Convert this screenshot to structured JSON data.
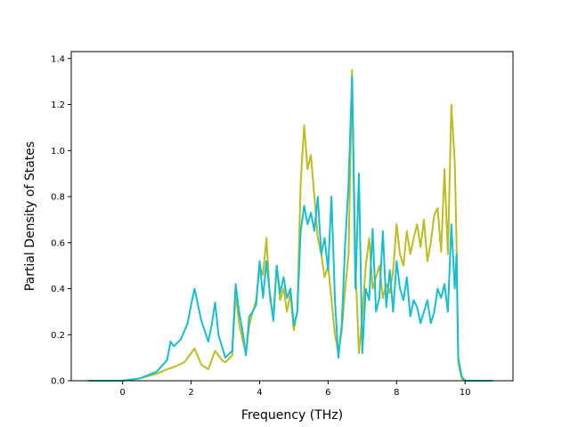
{
  "chart_data": {
    "type": "line",
    "title": "",
    "xlabel": "Frequency (THz)",
    "ylabel": "Partial Density of States",
    "xlim": [
      -1.5,
      11.4
    ],
    "ylim": [
      0,
      1.43
    ],
    "xticks": [
      "0",
      "2",
      "4",
      "6",
      "8",
      "10"
    ],
    "yticks": [
      "0.0",
      "0.2",
      "0.4",
      "0.6",
      "0.8",
      "1.0",
      "1.2",
      "1.4"
    ],
    "grid": false,
    "legend": "none",
    "colors": {
      "series_a": "#bcbd22",
      "series_b": "#17becf",
      "series_c": "#e377c2",
      "series_d": "#8c564b",
      "series_e": "#7f7f7f"
    },
    "series": [
      {
        "color": "#bcbd22",
        "x": [
          -1.0,
          0.0,
          0.5,
          1.0,
          1.3,
          1.5,
          1.8,
          2.0,
          2.1,
          2.3,
          2.5,
          2.7,
          2.9,
          3.0,
          3.2,
          3.3,
          3.4,
          3.5,
          3.6,
          3.7,
          3.8,
          3.9,
          4.0,
          4.1,
          4.2,
          4.3,
          4.4,
          4.5,
          4.6,
          4.7,
          4.8,
          4.9,
          5.0,
          5.1,
          5.2,
          5.3,
          5.4,
          5.5,
          5.6,
          5.7,
          5.8,
          5.9,
          6.0,
          6.1,
          6.2,
          6.3,
          6.4,
          6.5,
          6.6,
          6.7,
          6.8,
          6.9,
          7.0,
          7.1,
          7.2,
          7.3,
          7.4,
          7.5,
          7.6,
          7.7,
          7.8,
          7.9,
          8.0,
          8.1,
          8.2,
          8.3,
          8.4,
          8.5,
          8.6,
          8.7,
          8.8,
          8.9,
          9.0,
          9.1,
          9.2,
          9.3,
          9.4,
          9.5,
          9.6,
          9.7,
          9.75,
          9.8,
          9.9,
          10.0,
          10.8
        ],
        "y": [
          0.0,
          0.0,
          0.01,
          0.03,
          0.05,
          0.06,
          0.08,
          0.12,
          0.14,
          0.07,
          0.05,
          0.13,
          0.09,
          0.08,
          0.11,
          0.38,
          0.25,
          0.18,
          0.12,
          0.24,
          0.3,
          0.35,
          0.5,
          0.46,
          0.62,
          0.36,
          0.28,
          0.5,
          0.35,
          0.4,
          0.3,
          0.38,
          0.22,
          0.3,
          0.86,
          1.11,
          0.92,
          0.98,
          0.8,
          0.62,
          0.55,
          0.45,
          0.5,
          0.35,
          0.2,
          0.12,
          0.22,
          0.4,
          0.55,
          1.35,
          0.5,
          0.12,
          0.28,
          0.5,
          0.62,
          0.4,
          0.45,
          0.5,
          0.36,
          0.42,
          0.38,
          0.48,
          0.68,
          0.55,
          0.5,
          0.65,
          0.55,
          0.62,
          0.68,
          0.58,
          0.7,
          0.52,
          0.6,
          0.72,
          0.75,
          0.56,
          0.92,
          0.55,
          1.2,
          0.95,
          0.6,
          0.08,
          0.01,
          0.0,
          0.0
        ]
      },
      {
        "color": "#17becf",
        "x": [
          -1.0,
          0.0,
          0.5,
          1.0,
          1.3,
          1.4,
          1.5,
          1.7,
          1.9,
          2.0,
          2.1,
          2.3,
          2.5,
          2.6,
          2.7,
          2.8,
          3.0,
          3.2,
          3.3,
          3.4,
          3.5,
          3.6,
          3.7,
          3.8,
          3.9,
          4.0,
          4.1,
          4.2,
          4.3,
          4.4,
          4.5,
          4.6,
          4.7,
          4.8,
          4.9,
          5.0,
          5.1,
          5.2,
          5.3,
          5.4,
          5.5,
          5.6,
          5.7,
          5.8,
          5.9,
          6.0,
          6.1,
          6.2,
          6.3,
          6.4,
          6.5,
          6.6,
          6.7,
          6.8,
          6.9,
          7.0,
          7.1,
          7.2,
          7.3,
          7.4,
          7.5,
          7.6,
          7.7,
          7.8,
          7.9,
          8.0,
          8.1,
          8.2,
          8.3,
          8.4,
          8.5,
          8.6,
          8.7,
          8.8,
          8.9,
          9.0,
          9.1,
          9.2,
          9.3,
          9.4,
          9.5,
          9.6,
          9.7,
          9.75,
          9.8,
          9.9,
          10.0,
          10.8
        ],
        "y": [
          0.0,
          0.0,
          0.01,
          0.04,
          0.09,
          0.17,
          0.15,
          0.18,
          0.25,
          0.33,
          0.4,
          0.26,
          0.17,
          0.24,
          0.34,
          0.2,
          0.1,
          0.13,
          0.42,
          0.3,
          0.22,
          0.11,
          0.28,
          0.3,
          0.33,
          0.52,
          0.36,
          0.52,
          0.38,
          0.26,
          0.5,
          0.38,
          0.45,
          0.36,
          0.4,
          0.24,
          0.3,
          0.65,
          0.76,
          0.68,
          0.73,
          0.65,
          0.8,
          0.55,
          0.62,
          0.48,
          0.8,
          0.35,
          0.1,
          0.25,
          0.6,
          0.86,
          1.32,
          0.4,
          0.9,
          0.12,
          0.4,
          0.35,
          0.66,
          0.3,
          0.36,
          0.65,
          0.32,
          0.48,
          0.3,
          0.52,
          0.4,
          0.35,
          0.45,
          0.28,
          0.35,
          0.32,
          0.25,
          0.3,
          0.35,
          0.25,
          0.3,
          0.4,
          0.36,
          0.42,
          0.3,
          0.68,
          0.4,
          0.55,
          0.1,
          0.02,
          0.0,
          0.0
        ]
      }
    ]
  }
}
